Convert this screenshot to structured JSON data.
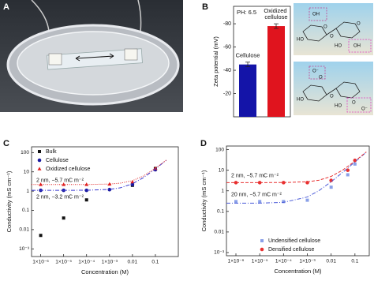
{
  "panel_labels": [
    "A",
    "B",
    "C",
    "D"
  ],
  "structures": [
    {
      "labels": [
        "HO",
        "OH",
        "O",
        "O",
        "HO",
        "OH",
        "O"
      ]
    },
    {
      "labels": [
        "O⁻",
        "O",
        "HO",
        "O",
        "O⁻",
        "HO",
        "O"
      ]
    }
  ],
  "chart_data": [
    {
      "type": "bar",
      "ylabel": "Zeta potential (mV)",
      "annotations": [
        "PH: 6.5"
      ],
      "categories": [
        "Cellulose",
        "Oxidized cellulose"
      ],
      "values": [
        -45,
        -78
      ],
      "errors": [
        2,
        2
      ],
      "colors": [
        "#1414a8",
        "#e0141e"
      ],
      "ylim": [
        0,
        -95
      ],
      "yticks": [
        -20,
        -40,
        -60,
        -80
      ]
    },
    {
      "type": "scatter",
      "xscale": "log",
      "yscale": "log",
      "xlabel": "Concentration (M)",
      "ylabel": "Conductivity (mS cm⁻¹)",
      "xlim": [
        4e-07,
        1
      ],
      "ylim": [
        0.0004,
        200
      ],
      "xticks": [
        {
          "value": 1e-06,
          "label": "1×10⁻⁶"
        },
        {
          "value": 1e-05,
          "label": "1×10⁻⁵"
        },
        {
          "value": 0.0001,
          "label": "1×10⁻⁴"
        },
        {
          "value": 0.001,
          "label": "1×10⁻³"
        },
        0.01,
        0.1
      ],
      "yticks": [
        100,
        10,
        1,
        0.1,
        0.01,
        {
          "value": 0.001,
          "label": "10⁻³"
        }
      ],
      "legend": "upper left",
      "annotations": [
        "2 nm, −5.7 mC m⁻²",
        "2 nm, −3.2 mC m⁻²"
      ],
      "series": [
        {
          "name": "Bulk",
          "marker": "square",
          "color": "#111111",
          "x": [
            1e-06,
            1e-05,
            0.0001,
            0.01,
            0.1
          ],
          "values": [
            0.005,
            0.04,
            0.35,
            2,
            15
          ]
        },
        {
          "name": "Cellulose",
          "marker": "circle",
          "color": "#1a1aa0",
          "x": [
            1e-06,
            1e-05,
            0.0001,
            0.001,
            0.01,
            0.1
          ],
          "values": [
            1.1,
            1.1,
            1.1,
            1.2,
            2.2,
            13
          ]
        },
        {
          "name": "Oxidized cellulose",
          "marker": "triangle",
          "color": "#e02020",
          "x": [
            1e-06,
            1e-05,
            0.0001,
            0.001,
            0.01,
            0.1
          ],
          "values": [
            2.2,
            2.2,
            2.2,
            2.3,
            3,
            15
          ]
        },
        {
          "marker": "line",
          "style": "dash-dot",
          "color": "#3a3ad0",
          "x": [
            4e-07,
            1e-06,
            1e-05,
            0.0001,
            0.001,
            0.003,
            0.01,
            0.03,
            0.1,
            0.3
          ],
          "values": [
            1.1,
            1.1,
            1.1,
            1.11,
            1.23,
            1.49,
            2.4,
            5,
            14.1,
            40.1
          ]
        },
        {
          "marker": "line",
          "style": "dotted",
          "color": "#e02020",
          "x": [
            4e-07,
            1e-06,
            1e-05,
            0.0001,
            0.001,
            0.003,
            0.01,
            0.03,
            0.1,
            0.3
          ],
          "values": [
            2.2,
            2.2,
            2.2,
            2.21,
            2.33,
            2.59,
            3.5,
            6.1,
            15.2,
            41.2
          ]
        }
      ]
    },
    {
      "type": "scatter",
      "xscale": "log",
      "yscale": "log",
      "xlabel": "Concentration (M)",
      "ylabel": "Conductivity (mS cm⁻¹)",
      "xlim": [
        4e-07,
        0.4
      ],
      "ylim": [
        0.0007,
        150
      ],
      "xticks": [
        {
          "value": 1e-06,
          "label": "1×10⁻⁶"
        },
        {
          "value": 1e-05,
          "label": "1×10⁻⁵"
        },
        {
          "value": 0.0001,
          "label": "1×10⁻⁴"
        },
        {
          "value": 0.001,
          "label": "1×10⁻³"
        },
        0.01,
        0.1
      ],
      "yticks": [
        100,
        10,
        1,
        0.1,
        0.01,
        {
          "value": 0.001,
          "label": "10⁻³"
        }
      ],
      "legend": "lower right",
      "annotations": [
        "2 nm, −5.7 mC m⁻²",
        "20 nm, −5.7 mC m⁻²"
      ],
      "series": [
        {
          "name": "Undensified cellulose",
          "marker": "square",
          "color": "#8aa0e8",
          "x": [
            1e-06,
            1e-05,
            0.0001,
            0.001,
            0.01,
            0.05,
            0.1
          ],
          "values": [
            0.3,
            0.3,
            0.3,
            0.35,
            1.5,
            6,
            20
          ]
        },
        {
          "name": "Densified cellulose",
          "marker": "circle",
          "color": "#e83030",
          "x": [
            1e-06,
            1e-05,
            0.0001,
            0.001,
            0.01,
            0.05,
            0.1
          ],
          "values": [
            2.5,
            2.5,
            2.5,
            2.5,
            3.2,
            10,
            30
          ]
        },
        {
          "marker": "line",
          "style": "dash-dot",
          "color": "#4a5ad8",
          "x": [
            4e-07,
            1e-06,
            1e-05,
            0.0001,
            0.001,
            0.003,
            0.01,
            0.03,
            0.1,
            0.3
          ],
          "values": [
            0.25,
            0.25,
            0.2525,
            0.275,
            0.5,
            1,
            2.75,
            7.75,
            25.25,
            75.25
          ]
        },
        {
          "marker": "line",
          "style": "dashed",
          "color": "#e83030",
          "x": [
            4e-07,
            1e-06,
            1e-05,
            0.0001,
            0.001,
            0.003,
            0.01,
            0.03,
            0.1,
            0.3
          ],
          "values": [
            2.5,
            2.5,
            2.5025,
            2.525,
            2.75,
            3.25,
            5,
            10,
            27.5,
            77.5
          ]
        }
      ]
    }
  ]
}
